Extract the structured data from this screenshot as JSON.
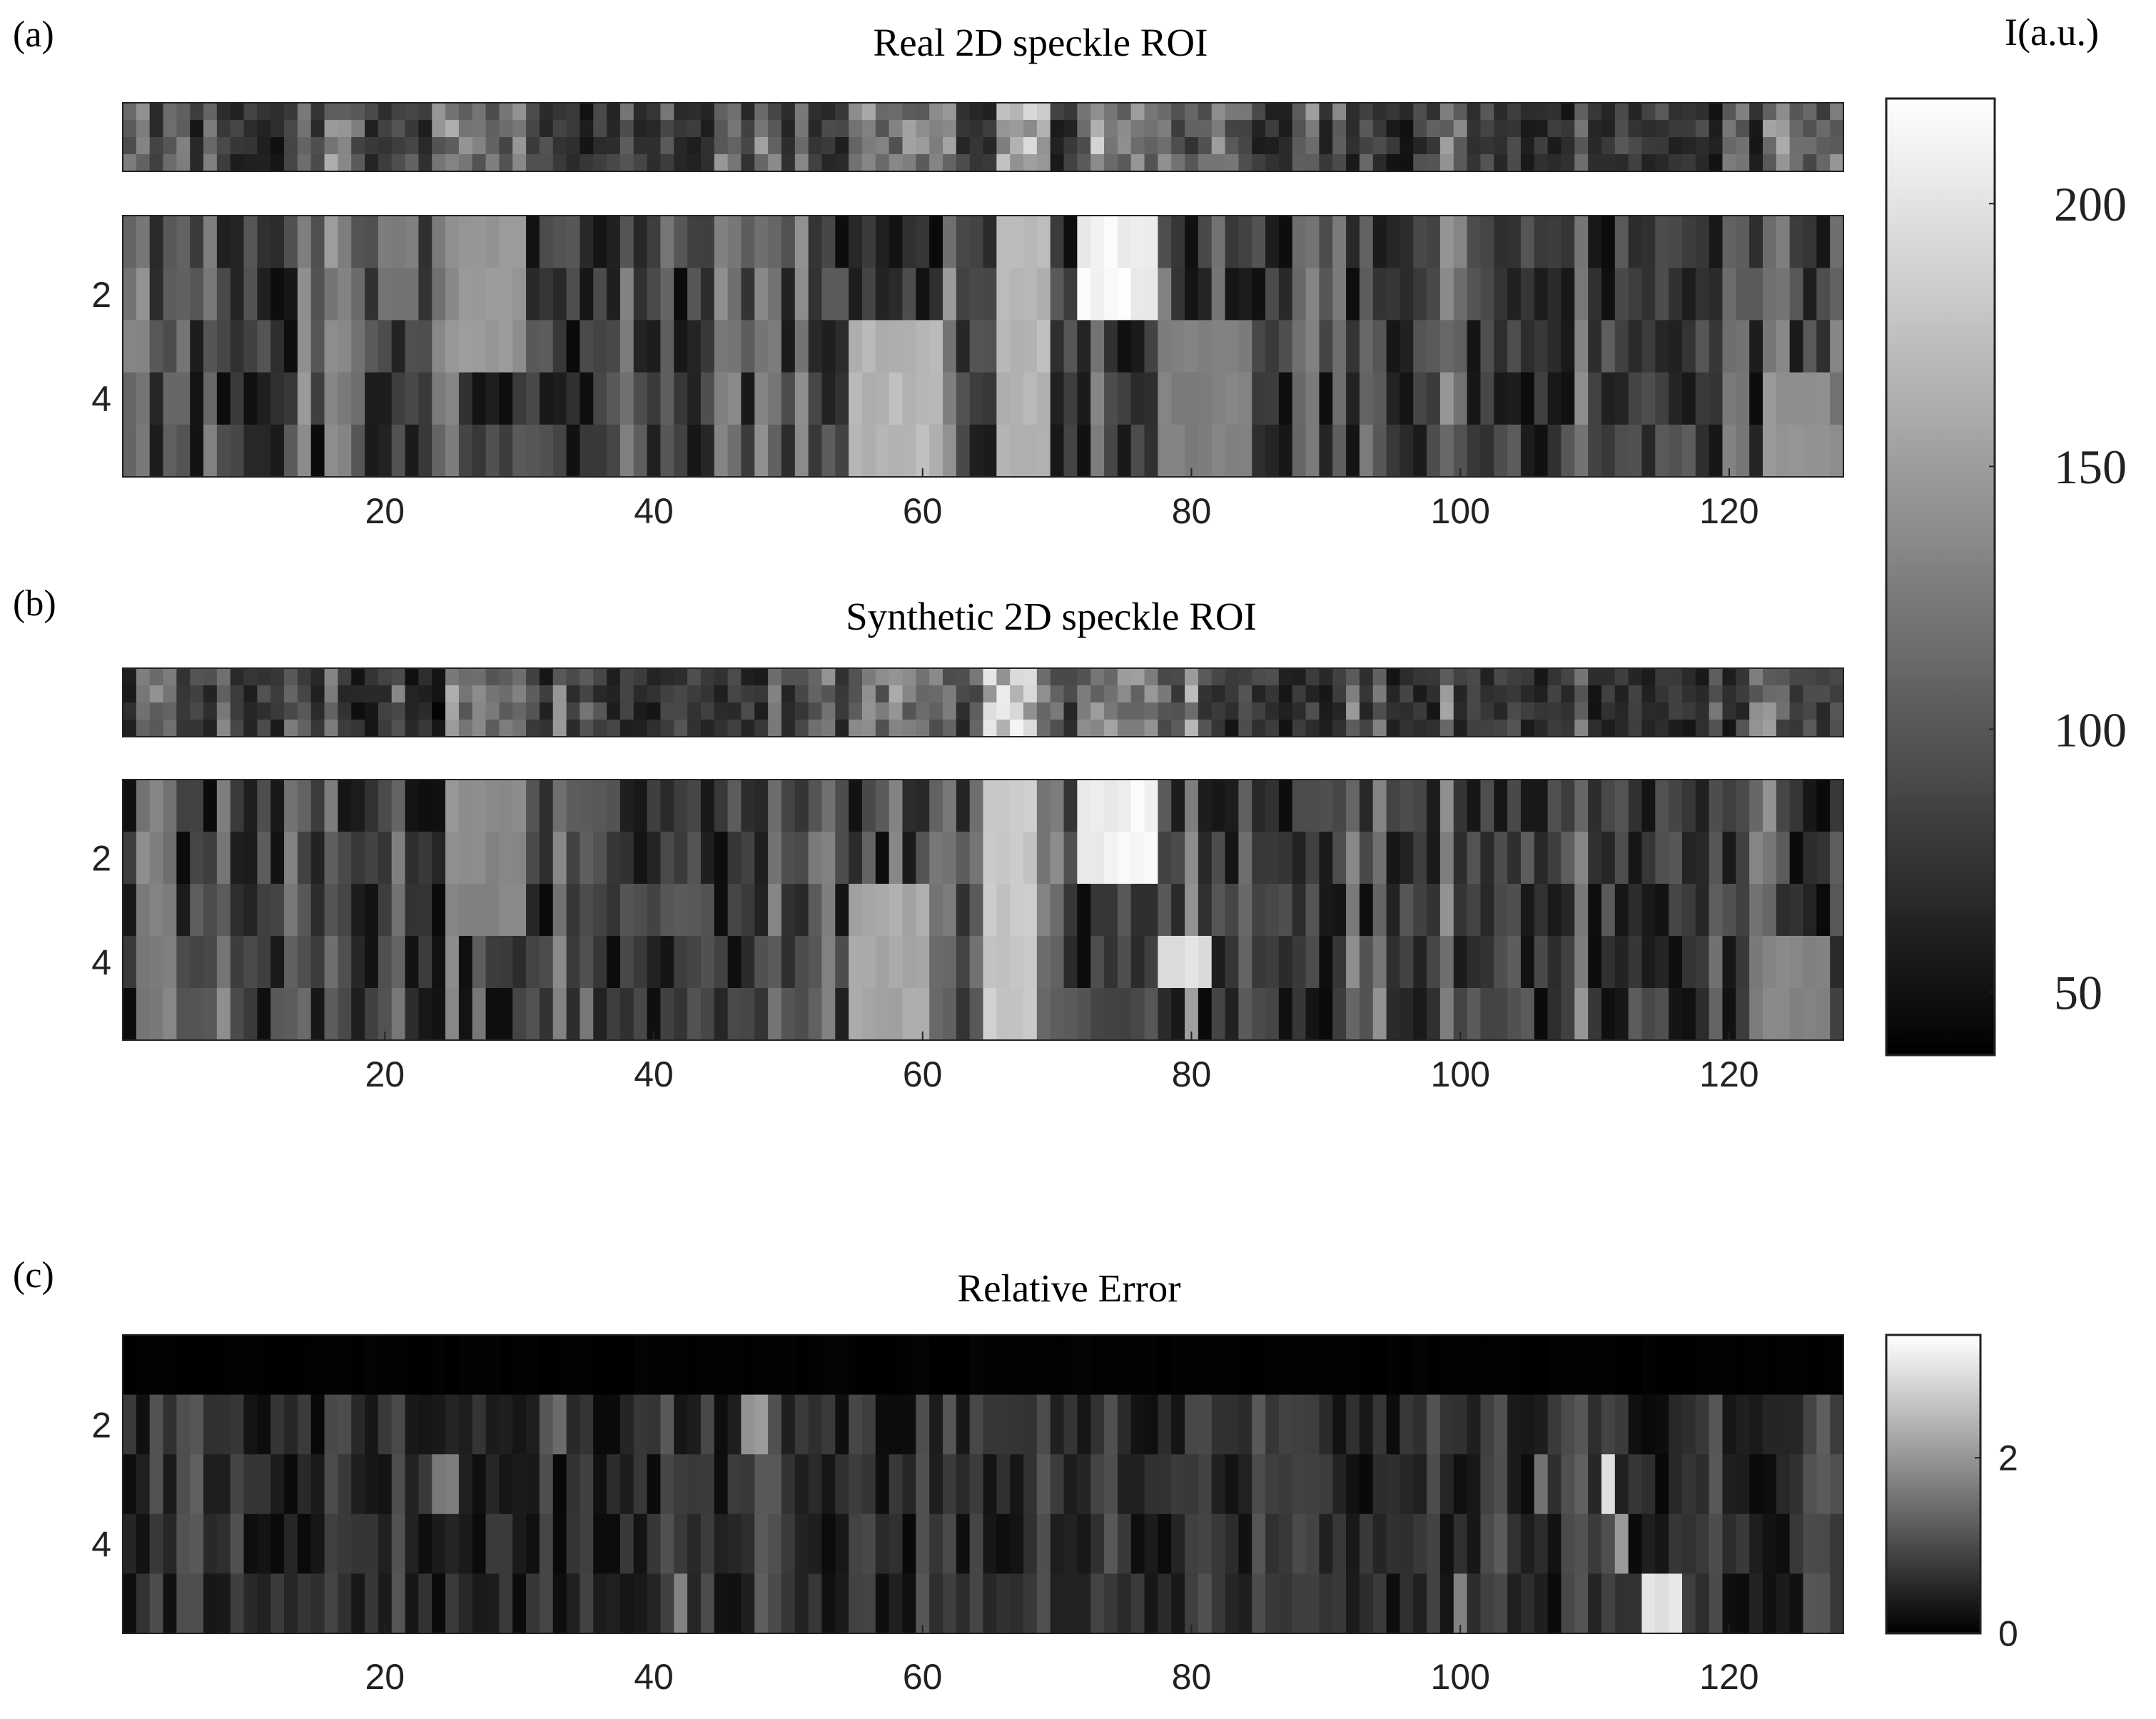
{
  "figure": {
    "panel_labels": [
      "(a)",
      "(b)",
      "(c)"
    ],
    "colorbar_main_label": "I(a.u.)"
  },
  "chart_data": [
    {
      "type": "heatmap",
      "title": "Real 2D speckle ROI",
      "panel": "(a)",
      "colormap": "gray",
      "xlim": [
        1,
        128
      ],
      "ylim": [
        1,
        5
      ],
      "x_ticks": [
        20,
        40,
        60,
        80,
        100,
        120
      ],
      "y_ticks": [
        2,
        4
      ],
      "n_rows": 5,
      "n_cols": 128,
      "has_summary_strip": true,
      "features": [
        {
          "x": [
            72,
            77
          ],
          "rows": [
            1,
            2
          ],
          "value": 220
        },
        {
          "x": [
            66,
            69
          ],
          "rows": [
            1,
            5
          ],
          "value": 175
        },
        {
          "x": [
            55,
            61
          ],
          "rows": [
            3,
            5
          ],
          "value": 175
        },
        {
          "x": [
            78,
            84
          ],
          "rows": [
            3,
            5
          ],
          "value": 135
        },
        {
          "x": [
            26,
            30
          ],
          "rows": [
            1,
            3
          ],
          "value": 150
        },
        {
          "x": [
            20,
            22
          ],
          "rows": [
            1,
            2
          ],
          "value": 130
        },
        {
          "x": [
            123,
            127
          ],
          "rows": [
            4,
            5
          ],
          "value": 150
        }
      ]
    },
    {
      "type": "heatmap",
      "title": "Synthetic 2D speckle ROI",
      "panel": "(b)",
      "colormap": "gray",
      "xlim": [
        1,
        128
      ],
      "ylim": [
        1,
        5
      ],
      "x_ticks": [
        20,
        40,
        60,
        80,
        100,
        120
      ],
      "y_ticks": [
        2,
        4
      ],
      "n_rows": 5,
      "n_cols": 128,
      "has_summary_strip": true,
      "features": [
        {
          "x": [
            72,
            77
          ],
          "rows": [
            1,
            2
          ],
          "value": 220
        },
        {
          "x": [
            65,
            68
          ],
          "rows": [
            1,
            5
          ],
          "value": 190
        },
        {
          "x": [
            55,
            60
          ],
          "rows": [
            3,
            5
          ],
          "value": 165
        },
        {
          "x": [
            78,
            81
          ],
          "rows": [
            4,
            4
          ],
          "value": 210
        },
        {
          "x": [
            26,
            30
          ],
          "rows": [
            1,
            3
          ],
          "value": 140
        },
        {
          "x": [
            123,
            127
          ],
          "rows": [
            4,
            5
          ],
          "value": 140
        }
      ]
    },
    {
      "type": "heatmap",
      "title": "Relative Error",
      "panel": "(c)",
      "colormap": "gray",
      "xlim": [
        1,
        128
      ],
      "ylim": [
        1,
        5
      ],
      "x_ticks": [
        20,
        40,
        60,
        80,
        100,
        120
      ],
      "y_ticks": [
        2,
        4
      ],
      "n_rows": 5,
      "n_cols": 128,
      "features": [
        {
          "x": [
            114,
            116
          ],
          "rows": [
            5,
            5
          ],
          "value": 3.2
        },
        {
          "x": [
            111,
            111
          ],
          "rows": [
            3,
            3
          ],
          "value": 3.0
        },
        {
          "x": [
            112,
            112
          ],
          "rows": [
            4,
            4
          ],
          "value": 2.2
        },
        {
          "x": [
            47,
            48
          ],
          "rows": [
            2,
            2
          ],
          "value": 2.1
        },
        {
          "x": [
            24,
            25
          ],
          "rows": [
            3,
            3
          ],
          "value": 1.7
        },
        {
          "x": [
            42,
            42
          ],
          "rows": [
            5,
            5
          ],
          "value": 1.9
        },
        {
          "x": [
            100,
            100
          ],
          "rows": [
            5,
            5
          ],
          "value": 1.8
        },
        {
          "x": [
            106,
            106
          ],
          "rows": [
            3,
            3
          ],
          "value": 1.6
        },
        {
          "x": [
            33,
            33
          ],
          "rows": [
            2,
            2
          ],
          "value": 1.5
        }
      ]
    }
  ],
  "colorbars": [
    {
      "name": "intensity",
      "label": "I(a.u.)",
      "range": [
        38,
        220
      ],
      "ticks": [
        50,
        100,
        150,
        200
      ]
    },
    {
      "name": "relative-error",
      "range": [
        0,
        3.4
      ],
      "ticks": [
        0,
        2
      ]
    }
  ]
}
